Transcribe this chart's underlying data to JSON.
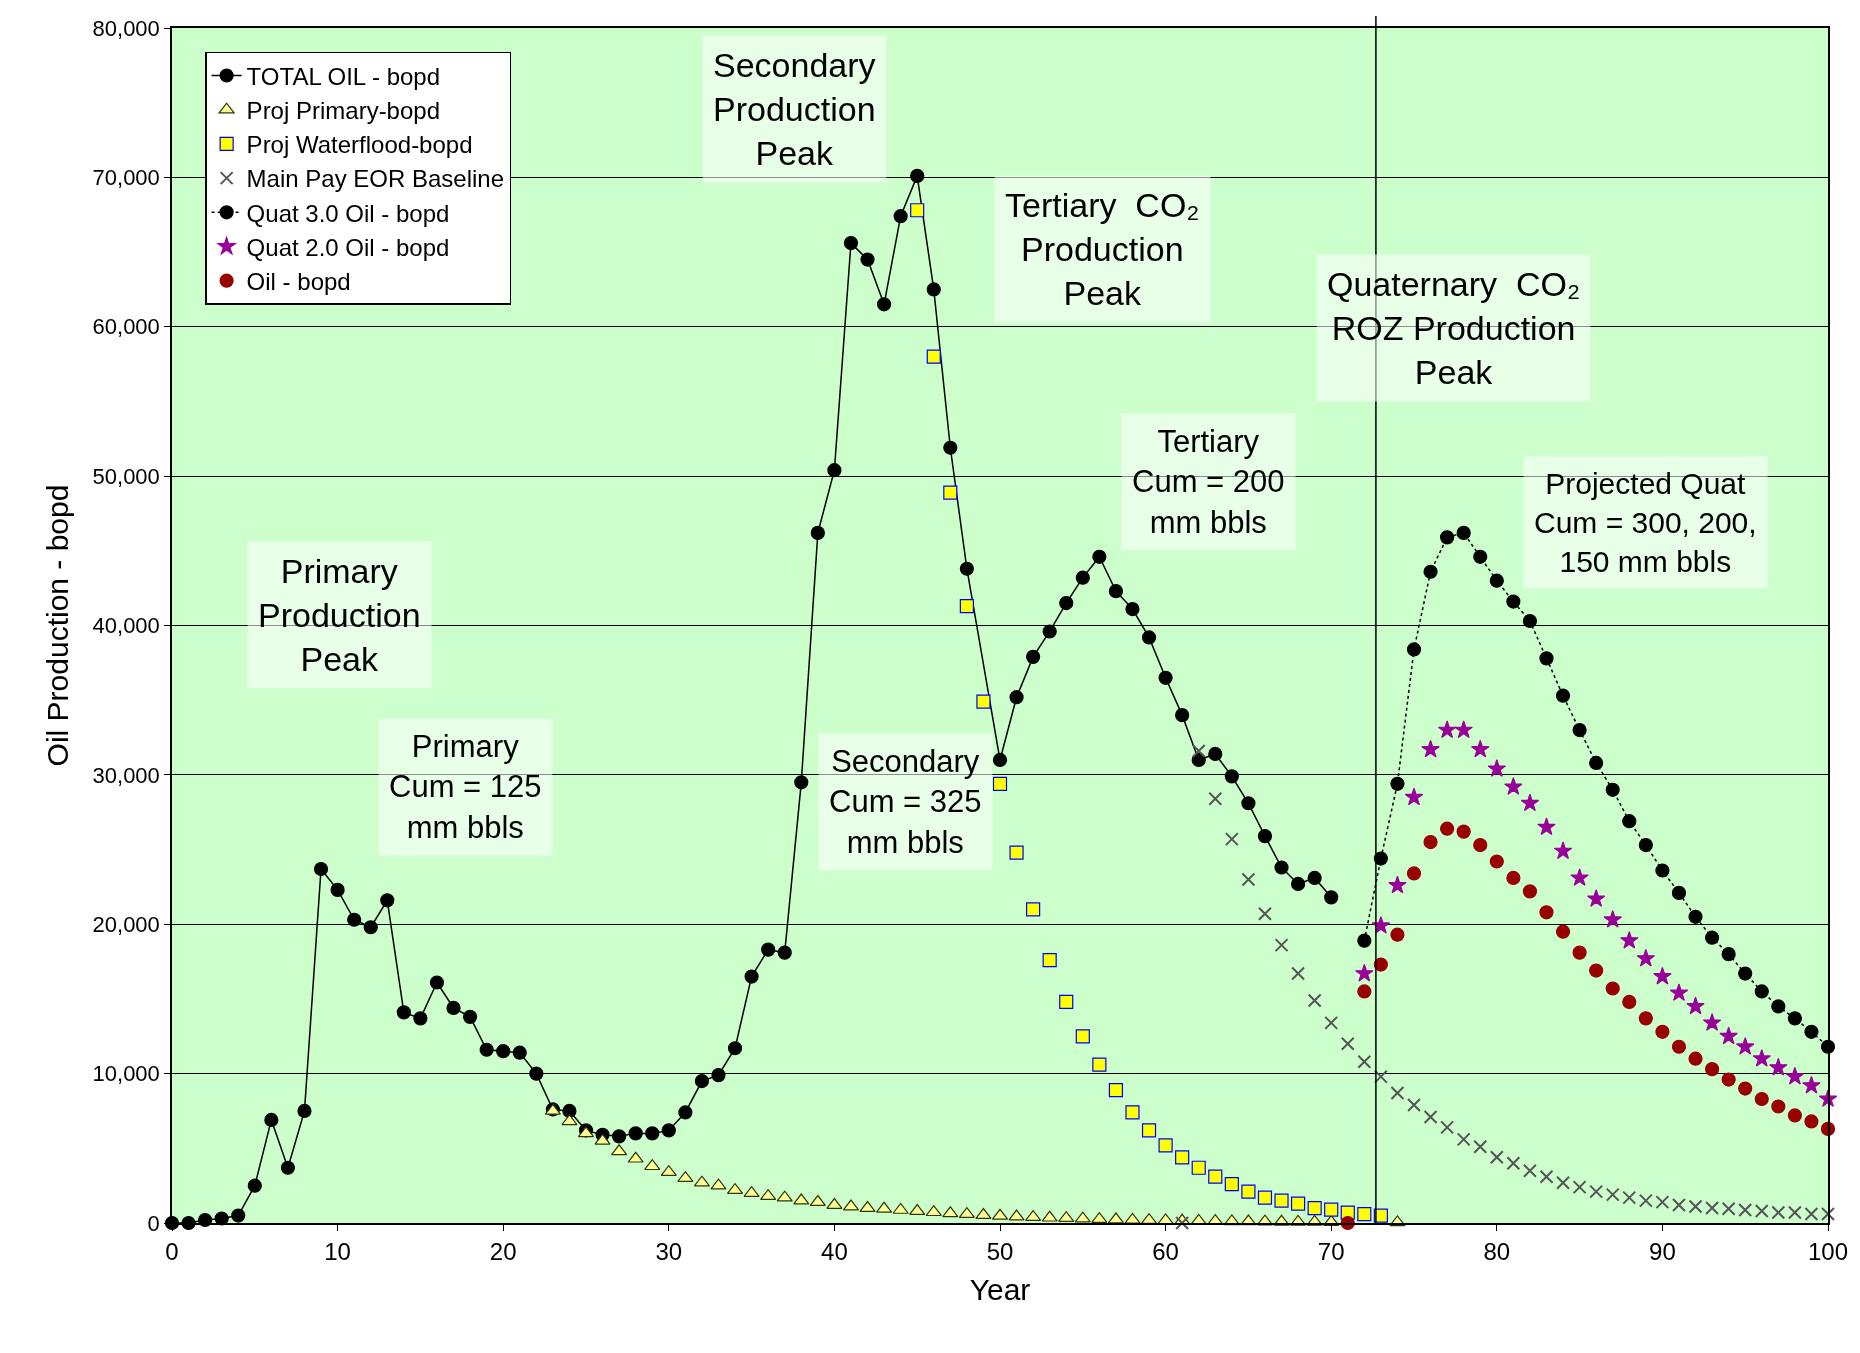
{
  "chart_data": {
    "type": "line",
    "xlabel": "Year",
    "ylabel": "Oil Production - bopd",
    "xlim": [
      0,
      100
    ],
    "xticks": [
      0,
      10,
      20,
      30,
      40,
      50,
      60,
      70,
      80,
      90,
      100
    ],
    "ylim": [
      0,
      80000
    ],
    "yticks": [
      0,
      {
        "value": 10000,
        "label": "10,000"
      },
      {
        "value": 20000,
        "label": "20,000"
      },
      {
        "value": 30000,
        "label": "30,000"
      },
      {
        "value": 40000,
        "label": "40,000"
      },
      {
        "value": 50000,
        "label": "50,000"
      },
      {
        "value": 60000,
        "label": "60,000"
      },
      {
        "value": 70000,
        "label": "70,000"
      },
      {
        "value": 80000,
        "label": "80,000"
      }
    ],
    "grid": "y",
    "legend": "top left",
    "ref_lines": [
      {
        "axis": "x",
        "value": 72.7,
        "color": "#000000"
      }
    ],
    "annotations": [
      "Secondary\nProduction\nPeak",
      "Tertiary  CO₂\nProduction\nPeak",
      "Quaternary  CO₂\nROZ Production\nPeak",
      "Primary\nProduction\nPeak",
      "Primary\nCum = 125\nmm bbls",
      "Secondary\nCum = 325\nmm bbls",
      "Tertiary\nCum = 200\nmm bbls",
      "Projected Quat\nCum = 300, 200,\n150 mm bbls"
    ],
    "series": [
      {
        "name": "TOTAL OIL - bopd",
        "marker": "circle",
        "line_style": "solid",
        "color": "#000000",
        "x": [
          0,
          1,
          2,
          3,
          4,
          5,
          6,
          7,
          8,
          9,
          10,
          11,
          12,
          13,
          14,
          15,
          16,
          17,
          18,
          19,
          20,
          21,
          22,
          23,
          24,
          25,
          26,
          27,
          28,
          29,
          30,
          31,
          32,
          33,
          34,
          35,
          36,
          37,
          38,
          39,
          40,
          41,
          42,
          43,
          44,
          45,
          46,
          47,
          48,
          50,
          51,
          52,
          53,
          54,
          55,
          56,
          57,
          58,
          59,
          60,
          61,
          62,
          63,
          64,
          65,
          66,
          67,
          68,
          69,
          70
        ],
        "values": [
          0,
          0,
          200,
          300,
          500,
          2500,
          6900,
          3700,
          7500,
          23700,
          22300,
          20300,
          19800,
          21600,
          14100,
          13700,
          16100,
          14400,
          13800,
          11600,
          11500,
          11400,
          10000,
          7600,
          7500,
          6200,
          5900,
          5800,
          6000,
          6000,
          6200,
          7400,
          9500,
          9900,
          11700,
          16500,
          18300,
          18100,
          29500,
          46200,
          50400,
          65600,
          64500,
          61500,
          67400,
          70100,
          62500,
          51900,
          43800,
          31000,
          35200,
          37900,
          39600,
          41500,
          43200,
          44600,
          42300,
          41100,
          39200,
          36500,
          34000,
          31000,
          31400,
          29900,
          28100,
          25900,
          23800,
          22700,
          23100,
          21800
        ]
      },
      {
        "name": "Proj Primary-bopd",
        "type": "scatter",
        "marker": "triangle",
        "color": "#ffff99",
        "x": [
          23,
          24,
          25,
          26,
          27,
          28,
          29,
          30,
          31,
          32,
          33,
          34,
          35,
          36,
          37,
          38,
          39,
          40,
          41,
          42,
          43,
          44,
          45,
          46,
          47,
          48,
          49,
          50,
          51,
          52,
          53,
          54,
          55,
          56,
          57,
          58,
          59,
          60,
          61,
          62,
          63,
          64,
          65,
          66,
          67,
          68,
          69,
          70,
          71,
          72,
          73,
          74
        ],
        "values": [
          7500,
          6800,
          6000,
          5500,
          4800,
          4300,
          3800,
          3400,
          3000,
          2700,
          2500,
          2200,
          2000,
          1800,
          1700,
          1500,
          1400,
          1200,
          1100,
          1000,
          950,
          870,
          800,
          720,
          650,
          590,
          530,
          480,
          430,
          390,
          350,
          320,
          290,
          260,
          230,
          210,
          190,
          170,
          150,
          140,
          120,
          110,
          100,
          90,
          80,
          70,
          70,
          60,
          null,
          null,
          null,
          40
        ]
      },
      {
        "name": "Proj Waterflood-bopd",
        "type": "scatter",
        "marker": "square",
        "color": "#ffff00",
        "x": [
          45,
          46,
          47,
          48,
          49,
          50,
          51,
          52,
          53,
          54,
          55,
          56,
          57,
          58,
          59,
          60,
          61,
          62,
          63,
          64,
          65,
          66,
          67,
          68,
          69,
          70,
          71,
          72,
          73
        ],
        "values": [
          67800,
          58000,
          48900,
          41300,
          34900,
          29400,
          24800,
          21000,
          17600,
          14800,
          12500,
          10600,
          8900,
          7400,
          6200,
          5200,
          4400,
          3700,
          3100,
          2600,
          2100,
          1700,
          1500,
          1300,
          1000,
          900,
          700,
          600,
          500
        ]
      },
      {
        "name": "Main Pay EOR Baseline",
        "type": "scatter",
        "marker": "cross",
        "color": "#555555",
        "x": [
          61,
          62,
          63,
          64,
          65,
          66,
          67,
          68,
          69,
          70,
          71,
          72,
          73,
          74,
          75,
          76,
          77,
          78,
          79,
          80,
          81,
          82,
          83,
          84,
          85,
          86,
          87,
          88,
          89,
          90,
          91,
          92,
          93,
          94,
          95,
          96,
          97,
          98,
          99,
          100
        ],
        "values": [
          0,
          31600,
          28400,
          25700,
          23000,
          20700,
          18600,
          16700,
          14900,
          13400,
          12000,
          10800,
          9800,
          8700,
          7900,
          7100,
          6400,
          5600,
          5100,
          4400,
          4000,
          3500,
          3100,
          2700,
          2400,
          2100,
          1900,
          1700,
          1500,
          1400,
          1200,
          1100,
          1000,
          950,
          870,
          800,
          700,
          700,
          600,
          600
        ]
      },
      {
        "name": "Quat 3.0 Oil - bopd",
        "marker": "circle",
        "line_style": "dotted",
        "color": "#000000",
        "x": [
          72,
          73,
          74,
          75,
          76,
          77,
          78,
          79,
          80,
          81,
          82,
          83,
          84,
          85,
          86,
          87,
          88,
          89,
          90,
          91,
          92,
          93,
          94,
          95,
          96,
          97,
          98,
          99,
          100
        ],
        "values": [
          18900,
          24400,
          29400,
          38400,
          43600,
          45900,
          46200,
          44600,
          43000,
          41600,
          40300,
          37800,
          35300,
          33000,
          30800,
          29000,
          26900,
          25300,
          23600,
          22100,
          20500,
          19100,
          18000,
          16700,
          15500,
          14500,
          13700,
          12800,
          11800
        ]
      },
      {
        "name": "Quat 2.0 Oil - bopd",
        "type": "scatter",
        "marker": "star",
        "color": "#990099",
        "x": [
          72,
          73,
          74,
          75,
          76,
          77,
          78,
          79,
          80,
          81,
          82,
          83,
          84,
          85,
          86,
          87,
          88,
          89,
          90,
          91,
          92,
          93,
          94,
          95,
          96,
          97,
          98,
          99,
          100
        ],
        "values": [
          16700,
          19900,
          22600,
          28500,
          31700,
          33000,
          33000,
          31700,
          30400,
          29200,
          28100,
          26500,
          24900,
          23100,
          21700,
          20300,
          18900,
          17700,
          16500,
          15400,
          14500,
          13400,
          12500,
          11800,
          11000,
          10400,
          9800,
          9200,
          8300
        ]
      },
      {
        "name": "Oil - bopd",
        "type": "scatter",
        "marker": "circle",
        "color": "#990000",
        "x": [
          71,
          72,
          73,
          74,
          75,
          76,
          77,
          78,
          79,
          80,
          81,
          82,
          83,
          84,
          85,
          86,
          87,
          88,
          89,
          90,
          91,
          92,
          93,
          94,
          95,
          96,
          97,
          98,
          99,
          100
        ],
        "values": [
          0,
          15500,
          17300,
          19300,
          23400,
          25500,
          26400,
          26200,
          25300,
          24200,
          23100,
          22200,
          20800,
          19500,
          18100,
          16900,
          15700,
          14800,
          13700,
          12800,
          11800,
          11000,
          10300,
          9600,
          9000,
          8300,
          7800,
          7200,
          6800,
          6300
        ]
      }
    ]
  }
}
